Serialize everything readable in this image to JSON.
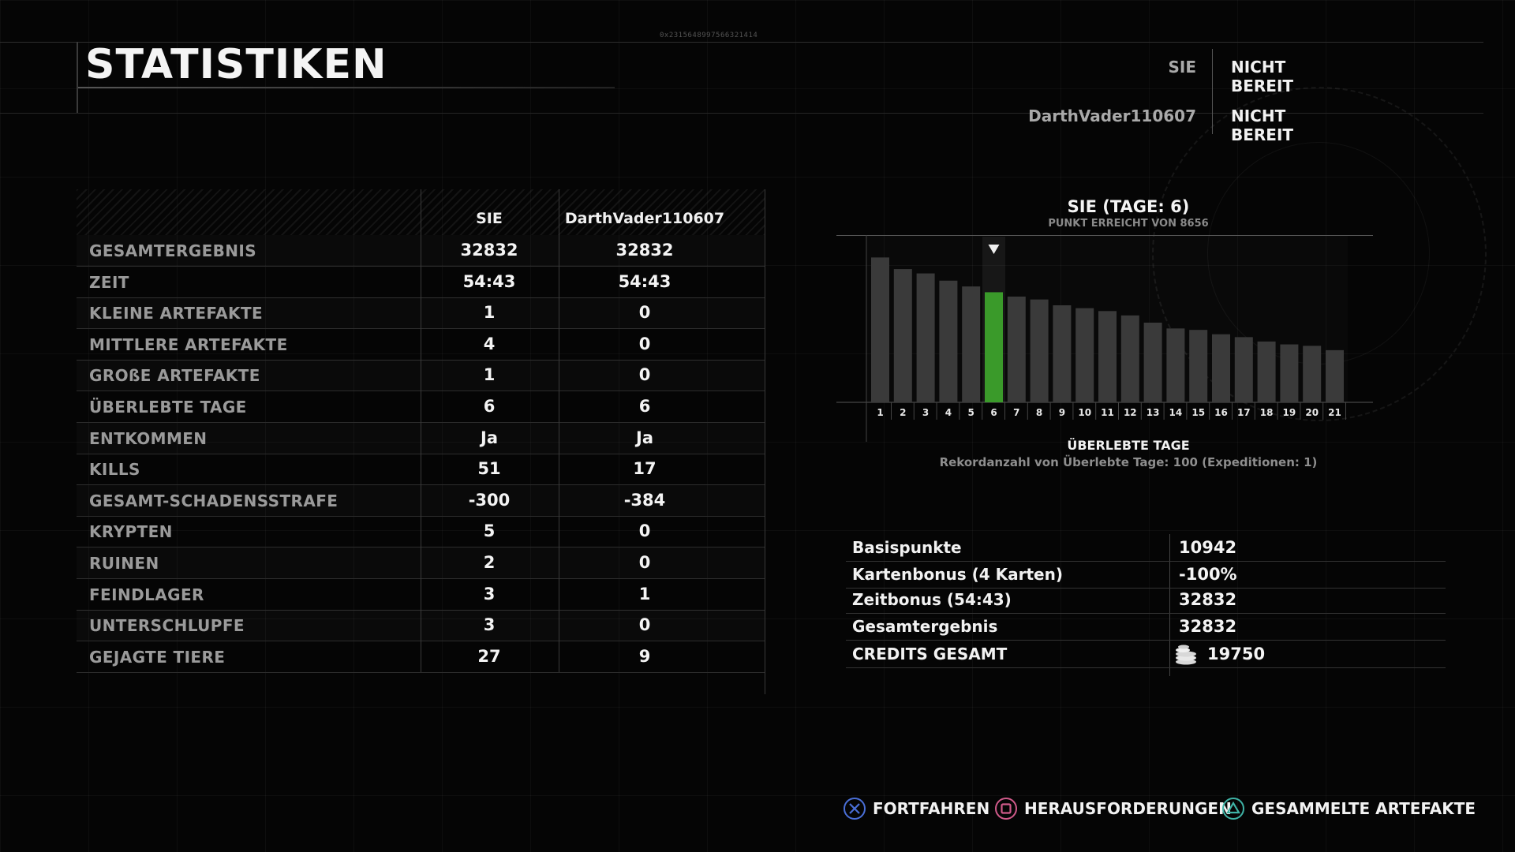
{
  "header": {
    "title": "STATISTIKEN",
    "hash": "0x2315648997566321414"
  },
  "ready": [
    {
      "name": "SIE",
      "status": "NICHT BEREIT"
    },
    {
      "name": "DarthVader110607",
      "status": "NICHT BEREIT"
    }
  ],
  "stats": {
    "columns": [
      "SIE",
      "DarthVader110607"
    ],
    "rows": [
      {
        "label": "GESAMTERGEBNIS",
        "you": "32832",
        "opp": "32832"
      },
      {
        "label": "ZEIT",
        "you": "54:43",
        "opp": "54:43"
      },
      {
        "label": "KLEINE ARTEFAKTE",
        "you": "1",
        "opp": "0"
      },
      {
        "label": "MITTLERE ARTEFAKTE",
        "you": "4",
        "opp": "0"
      },
      {
        "label": "GROßE ARTEFAKTE",
        "you": "1",
        "opp": "0"
      },
      {
        "label": "ÜBERLEBTE TAGE",
        "you": "6",
        "opp": "6"
      },
      {
        "label": "ENTKOMMEN",
        "you": "Ja",
        "opp": "Ja"
      },
      {
        "label": "KILLS",
        "you": "51",
        "opp": "17"
      },
      {
        "label": "GESAMT-SCHADENSSTRAFE",
        "you": "-300",
        "opp": "-384"
      },
      {
        "label": "KRYPTEN",
        "you": "5",
        "opp": "0"
      },
      {
        "label": "RUINEN",
        "you": "2",
        "opp": "0"
      },
      {
        "label": "FEINDLAGER",
        "you": "3",
        "opp": "1"
      },
      {
        "label": "UNTERSCHLUPFE",
        "you": "3",
        "opp": "0"
      },
      {
        "label": "GEJAGTE TIERE",
        "you": "27",
        "opp": "9"
      }
    ]
  },
  "chart_data": {
    "type": "bar",
    "title": "SIE (TAGE: 6)",
    "subtitle": "PUNKT ERREICHT VON 8656",
    "xlabel": "ÜBERLEBTE TAGE",
    "note": "Rekordanzahl von Überlebte Tage: 100 (Expeditionen: 1)",
    "categories": [
      "1",
      "2",
      "3",
      "4",
      "5",
      "6",
      "7",
      "8",
      "9",
      "10",
      "11",
      "12",
      "13",
      "14",
      "15",
      "16",
      "17",
      "18",
      "19",
      "20",
      "21"
    ],
    "values": [
      100,
      92,
      89,
      84,
      80,
      76,
      73,
      71,
      67,
      65,
      63,
      60,
      55,
      51,
      50,
      47,
      45,
      42,
      40,
      39,
      36
    ],
    "ylim": [
      0,
      110
    ],
    "highlight_index": 5,
    "colors": {
      "bar": "#3a3a3a",
      "highlight": "#3a9a2a"
    }
  },
  "score": [
    {
      "label": "Basispunkte",
      "value": "10942"
    },
    {
      "label": "Kartenbonus (4 Karten)",
      "value": "-100%"
    },
    {
      "label": "Zeitbonus (54:43)",
      "value": "32832"
    },
    {
      "label": "Gesamtergebnis",
      "value": "32832"
    },
    {
      "label": "CREDITS GESAMT",
      "value": "19750",
      "icon": "coins-icon"
    }
  ],
  "footer": [
    {
      "label": "FORTFAHREN",
      "icon": "cross-button-icon",
      "color": "#4a6fd8"
    },
    {
      "label": "HERAUSFORDERUNGEN",
      "icon": "square-button-icon",
      "color": "#d05a8a"
    },
    {
      "label": "GESAMMELTE ARTEFAKTE",
      "icon": "triangle-button-icon",
      "color": "#3fb3a6"
    }
  ]
}
